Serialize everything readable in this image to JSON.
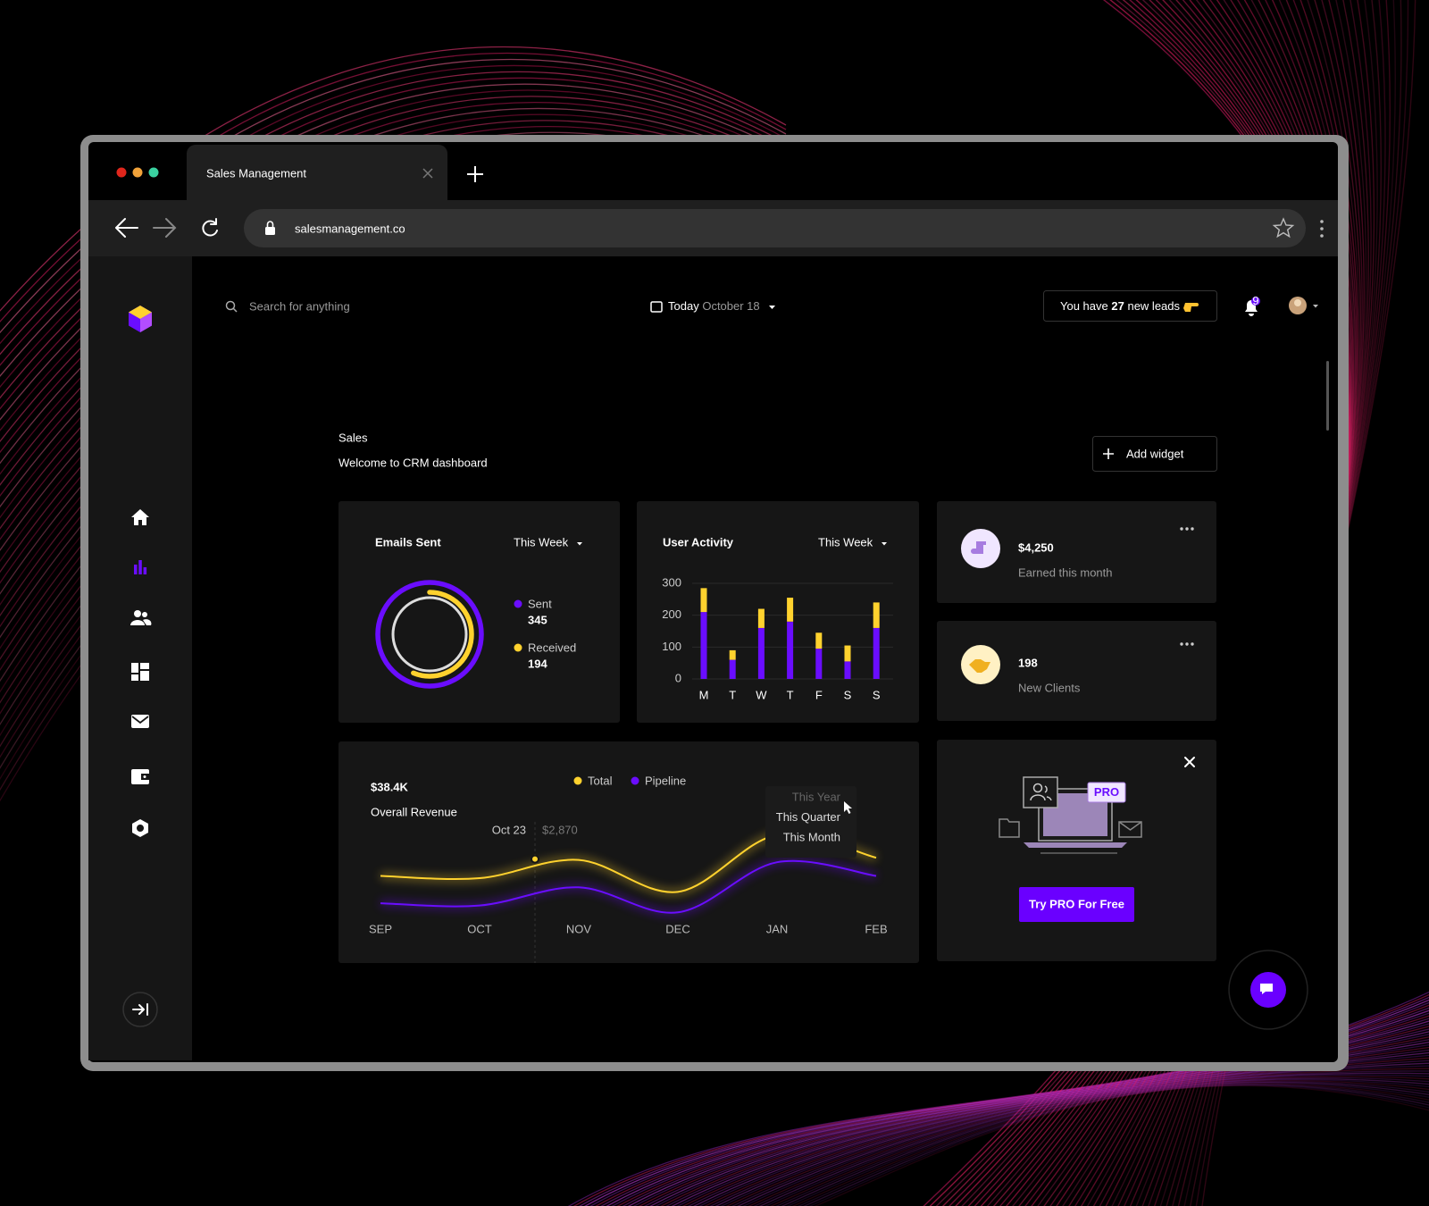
{
  "browser": {
    "tab_title": "Sales Management",
    "url": "salesmanagement.co"
  },
  "topbar": {
    "search_placeholder": "Search for anything",
    "date_prefix": "Today",
    "date": "October 18",
    "leads_prefix": "You have",
    "leads_count": 27,
    "leads_suffix": "new leads",
    "notifications": 9
  },
  "header": {
    "title": "Sales",
    "subtitle": "Welcome to CRM dashboard",
    "add_widget": "Add widget"
  },
  "emails_sent": {
    "type": "donut",
    "title": "Emails Sent",
    "period": "This Week",
    "series": [
      {
        "name": "Sent",
        "value": 345,
        "color": "#6a0dff"
      },
      {
        "name": "Received",
        "value": 194,
        "color": "#ffd22e"
      }
    ]
  },
  "user_activity": {
    "type": "bar",
    "stacked": true,
    "title": "User Activity",
    "period": "This Week",
    "categories": [
      "M",
      "T",
      "W",
      "T",
      "F",
      "S",
      "S"
    ],
    "series": [
      {
        "color": "#6a0dff",
        "values": [
          210,
          60,
          160,
          180,
          95,
          55,
          160
        ]
      },
      {
        "color": "#ffd22e",
        "values": [
          75,
          30,
          60,
          75,
          50,
          50,
          80
        ]
      }
    ],
    "ylim": [
      0,
      300
    ],
    "yticks": [
      0,
      100,
      200,
      300
    ],
    "grid": true
  },
  "stats": [
    {
      "value": "$4,250",
      "label": "Earned this month"
    },
    {
      "value": 198,
      "label": "New Clients"
    }
  ],
  "revenue": {
    "type": "line",
    "value": "$38.4K",
    "label": "Overall Revenue",
    "categories": [
      "SEP",
      "OCT",
      "NOV",
      "DEC",
      "JAN",
      "FEB"
    ],
    "series": [
      {
        "name": "Total",
        "color": "#ffd22e",
        "values": [
          2500,
          2450,
          2850,
          2150,
          3400,
          2900
        ]
      },
      {
        "name": "Pipeline",
        "color": "#6a0dff",
        "values": [
          1900,
          1850,
          2250,
          1700,
          2800,
          2500
        ]
      }
    ],
    "ylim": [
      1000,
      4000
    ],
    "tooltip": {
      "date": "Oct 23",
      "value": 2870,
      "value_label": "$2,870"
    },
    "period_options": [
      "This Year",
      "This Quarter",
      "This Month"
    ]
  },
  "promo": {
    "badge": "PRO",
    "button": "Try PRO For Free"
  }
}
